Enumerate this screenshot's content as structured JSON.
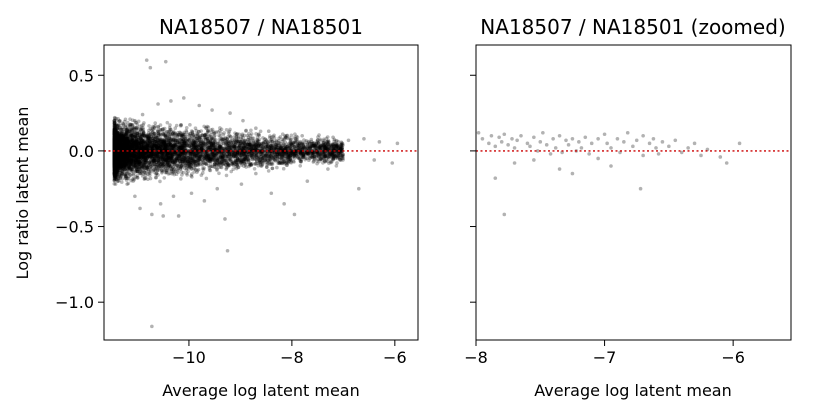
{
  "chart_data": [
    {
      "type": "scatter",
      "title": "NA18507 / NA18501",
      "xlabel": "Average log latent mean",
      "ylabel": "Log ratio latent mean",
      "xlim": [
        -11.65,
        -5.55
      ],
      "ylim": [
        -1.25,
        0.7
      ],
      "xticks": [
        -10,
        -8,
        -6
      ],
      "xtick_labels": [
        "−10",
        "−8",
        "−6"
      ],
      "yticks": [
        0.5,
        0.0,
        -0.5,
        -1.0
      ],
      "ytick_labels": [
        "0.5",
        "0.0",
        "−0.5",
        "−1.0"
      ],
      "reference_line": {
        "y": 0.0,
        "style": "dotted",
        "color": "#cc0000"
      },
      "point_color": "#000000",
      "grid": false,
      "points": [
        [
          -10.82,
          0.6
        ],
        [
          -10.75,
          0.55
        ],
        [
          -10.45,
          0.59
        ],
        [
          -11.05,
          0.2
        ],
        [
          -10.9,
          0.24
        ],
        [
          -10.6,
          0.31
        ],
        [
          -10.35,
          0.33
        ],
        [
          -10.1,
          0.35
        ],
        [
          -9.8,
          0.3
        ],
        [
          -9.55,
          0.27
        ],
        [
          -9.2,
          0.25
        ],
        [
          -8.95,
          0.2
        ],
        [
          -8.7,
          0.15
        ],
        [
          -8.45,
          0.13
        ],
        [
          -8.1,
          0.1
        ],
        [
          -7.8,
          0.1
        ],
        [
          -7.5,
          0.07
        ],
        [
          -7.2,
          0.09
        ],
        [
          -6.9,
          0.07
        ],
        [
          -6.6,
          0.08
        ],
        [
          -6.3,
          0.06
        ],
        [
          -5.95,
          0.05
        ],
        [
          -11.2,
          -0.22
        ],
        [
          -11.05,
          -0.3
        ],
        [
          -10.95,
          -0.38
        ],
        [
          -10.72,
          -0.42
        ],
        [
          -10.55,
          -0.35
        ],
        [
          -10.5,
          -0.43
        ],
        [
          -10.3,
          -0.3
        ],
        [
          -10.2,
          -0.43
        ],
        [
          -9.95,
          -0.28
        ],
        [
          -9.7,
          -0.33
        ],
        [
          -9.45,
          -0.25
        ],
        [
          -9.3,
          -0.45
        ],
        [
          -9.25,
          -0.66
        ],
        [
          -8.98,
          -0.22
        ],
        [
          -8.7,
          -0.15
        ],
        [
          -8.4,
          -0.28
        ],
        [
          -8.15,
          -0.35
        ],
        [
          -7.95,
          -0.42
        ],
        [
          -7.7,
          -0.2
        ],
        [
          -7.3,
          -0.12
        ],
        [
          -6.7,
          -0.25
        ],
        [
          -6.4,
          -0.06
        ],
        [
          -6.05,
          -0.08
        ],
        [
          -10.72,
          -1.16
        ]
      ],
      "dense_band": {
        "x_range": [
          -11.45,
          -7.0
        ],
        "core_x_range": [
          -11.4,
          -10.5
        ],
        "half_width_max": 0.19
      }
    },
    {
      "type": "scatter",
      "title": "NA18507 / NA18501 (zoomed)",
      "xlabel": "Average log latent mean",
      "ylabel": "",
      "xlim": [
        -8.0,
        -5.55
      ],
      "ylim": [
        -1.25,
        0.7
      ],
      "xticks": [
        -8,
        -7,
        -6
      ],
      "xtick_labels": [
        "−8",
        "−7",
        "−6"
      ],
      "yticks": [
        0.5,
        0.0,
        -0.5,
        -1.0
      ],
      "ytick_labels": [
        "",
        "",
        "",
        ""
      ],
      "reference_line": {
        "y": 0.0,
        "style": "dotted",
        "color": "#cc0000"
      },
      "point_color": "#000000",
      "grid": false,
      "points": [
        [
          -7.98,
          0.12
        ],
        [
          -7.95,
          0.08
        ],
        [
          -7.9,
          0.05
        ],
        [
          -7.88,
          0.1
        ],
        [
          -7.85,
          0.03
        ],
        [
          -7.82,
          0.09
        ],
        [
          -7.8,
          0.06
        ],
        [
          -7.78,
          0.11
        ],
        [
          -7.75,
          0.04
        ],
        [
          -7.72,
          0.08
        ],
        [
          -7.7,
          0.02
        ],
        [
          -7.68,
          0.07
        ],
        [
          -7.65,
          0.1
        ],
        [
          -7.6,
          0.05
        ],
        [
          -7.58,
          0.03
        ],
        [
          -7.55,
          0.09
        ],
        [
          -7.5,
          0.06
        ],
        [
          -7.48,
          0.12
        ],
        [
          -7.45,
          0.04
        ],
        [
          -7.4,
          0.08
        ],
        [
          -7.38,
          0.02
        ],
        [
          -7.35,
          0.1
        ],
        [
          -7.3,
          0.07
        ],
        [
          -7.28,
          0.04
        ],
        [
          -7.25,
          0.08
        ],
        [
          -7.2,
          0.06
        ],
        [
          -7.18,
          0.02
        ],
        [
          -7.15,
          0.09
        ],
        [
          -7.1,
          0.05
        ],
        [
          -7.05,
          0.08
        ],
        [
          -7.0,
          0.11
        ],
        [
          -6.98,
          0.05
        ],
        [
          -6.95,
          0.02
        ],
        [
          -6.9,
          0.08
        ],
        [
          -6.85,
          0.06
        ],
        [
          -6.82,
          0.12
        ],
        [
          -6.78,
          0.03
        ],
        [
          -6.75,
          0.07
        ],
        [
          -6.7,
          0.1
        ],
        [
          -6.65,
          0.05
        ],
        [
          -6.62,
          0.08
        ],
        [
          -6.6,
          0.02
        ],
        [
          -6.55,
          0.06
        ],
        [
          -6.5,
          0.03
        ],
        [
          -6.45,
          0.07
        ],
        [
          -6.35,
          0.02
        ],
        [
          -6.3,
          0.05
        ],
        [
          -6.2,
          0.01
        ],
        [
          -5.95,
          0.05
        ],
        [
          -7.52,
          0.0
        ],
        [
          -7.42,
          -0.02
        ],
        [
          -7.33,
          -0.01
        ],
        [
          -7.22,
          0.0
        ],
        [
          -7.12,
          -0.02
        ],
        [
          -6.88,
          -0.01
        ],
        [
          -6.7,
          -0.03
        ],
        [
          -6.58,
          -0.02
        ],
        [
          -6.4,
          -0.01
        ],
        [
          -6.25,
          -0.03
        ],
        [
          -6.05,
          -0.08
        ],
        [
          -6.1,
          -0.04
        ],
        [
          -7.85,
          -0.18
        ],
        [
          -7.7,
          -0.08
        ],
        [
          -7.55,
          -0.06
        ],
        [
          -7.35,
          -0.12
        ],
        [
          -7.25,
          -0.15
        ],
        [
          -7.05,
          -0.05
        ],
        [
          -6.95,
          -0.1
        ],
        [
          -6.72,
          -0.25
        ],
        [
          -7.78,
          -0.42
        ]
      ]
    }
  ]
}
